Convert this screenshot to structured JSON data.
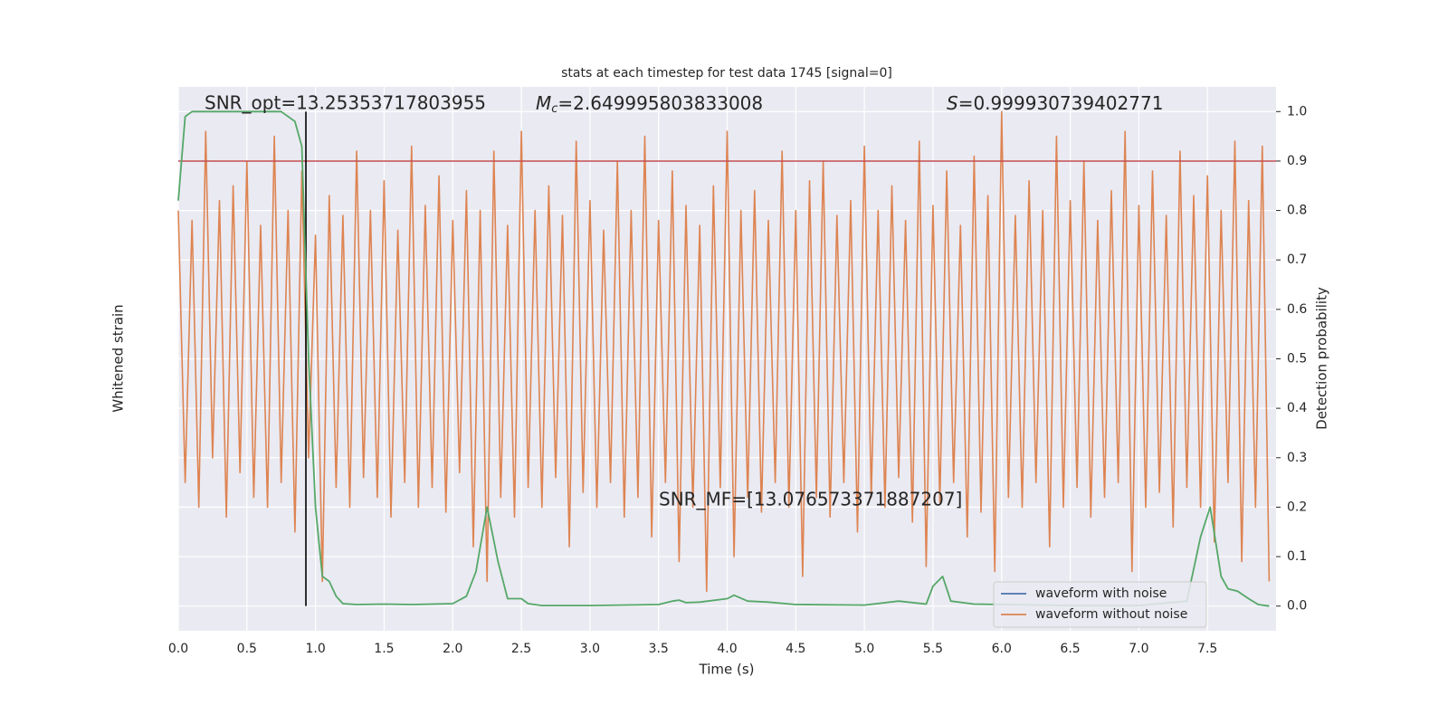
{
  "chart_data": {
    "type": "line",
    "title": "stats at each timestep for test data 1745 [signal=0]",
    "xlabel": "Time (s)",
    "ylabel": "Whitened strain",
    "y2label": "Detection probability",
    "xlim": [
      0,
      8
    ],
    "xticks": [
      {
        "value": 0,
        "label": "0.0"
      },
      0.5,
      {
        "value": 1,
        "label": "1.0"
      },
      1.5,
      {
        "value": 2,
        "label": "2.0"
      },
      2.5,
      {
        "value": 3,
        "label": "3.0"
      },
      3.5,
      {
        "value": 4,
        "label": "4.0"
      },
      4.5,
      {
        "value": 5,
        "label": "5.0"
      },
      5.5,
      {
        "value": 6,
        "label": "6.0"
      },
      6.5,
      {
        "value": 7,
        "label": "7.0"
      },
      7.5
    ],
    "ylim": [
      -0.05,
      1.05
    ],
    "y2lim": [
      -0.05,
      1.05
    ],
    "y2ticks": [
      {
        "value": 0,
        "label": "0.0"
      },
      0.1,
      0.2,
      0.3,
      0.4,
      0.5,
      0.6,
      0.7,
      0.8,
      0.9,
      {
        "value": 1,
        "label": "1.0"
      }
    ],
    "grid": true,
    "legend_position": "lower right",
    "legend": [
      {
        "name": "waveform with noise",
        "color": "#4c72b0"
      },
      {
        "name": "waveform without noise",
        "color": "#dd8452"
      }
    ],
    "strain": {
      "color": "#dd8452",
      "x": [
        0,
        0.05,
        0.1,
        0.15,
        0.2,
        0.25,
        0.3,
        0.35,
        0.4,
        0.45,
        0.5,
        0.55,
        0.6,
        0.65,
        0.7,
        0.75,
        0.8,
        0.85,
        0.9,
        0.95,
        1,
        1.05,
        1.1,
        1.15,
        1.2,
        1.25,
        1.3,
        1.35,
        1.4,
        1.45,
        1.5,
        1.55,
        1.6,
        1.65,
        1.7,
        1.75,
        1.8,
        1.85,
        1.9,
        1.95,
        2,
        2.05,
        2.1,
        2.15,
        2.2,
        2.25,
        2.3,
        2.35,
        2.4,
        2.45,
        2.5,
        2.55,
        2.6,
        2.65,
        2.7,
        2.75,
        2.8,
        2.85,
        2.9,
        2.95,
        3,
        3.05,
        3.1,
        3.15,
        3.2,
        3.25,
        3.3,
        3.35,
        3.4,
        3.45,
        3.5,
        3.55,
        3.6,
        3.65,
        3.7,
        3.75,
        3.8,
        3.85,
        3.9,
        3.95,
        4,
        4.05,
        4.1,
        4.15,
        4.2,
        4.25,
        4.3,
        4.35,
        4.4,
        4.45,
        4.5,
        4.55,
        4.6,
        4.65,
        4.7,
        4.75,
        4.8,
        4.85,
        4.9,
        4.95,
        5,
        5.05,
        5.1,
        5.15,
        5.2,
        5.25,
        5.3,
        5.35,
        5.4,
        5.45,
        5.5,
        5.55,
        5.6,
        5.65,
        5.7,
        5.75,
        5.8,
        5.85,
        5.9,
        5.95,
        6,
        6.05,
        6.1,
        6.15,
        6.2,
        6.25,
        6.3,
        6.35,
        6.4,
        6.45,
        6.5,
        6.55,
        6.6,
        6.65,
        6.7,
        6.75,
        6.8,
        6.85,
        6.9,
        6.95,
        7,
        7.05,
        7.1,
        7.15,
        7.2,
        7.25,
        7.3,
        7.35,
        7.4,
        7.45,
        7.5,
        7.55,
        7.6,
        7.65,
        7.7,
        7.75,
        7.8,
        7.85,
        7.9,
        7.95
      ],
      "values": [
        0.8,
        0.25,
        0.78,
        0.2,
        0.96,
        0.3,
        0.82,
        0.18,
        0.85,
        0.27,
        0.9,
        0.22,
        0.77,
        0.2,
        0.95,
        0.25,
        0.8,
        0.15,
        0.88,
        0.3,
        0.75,
        0.05,
        0.83,
        0.24,
        0.79,
        0.2,
        0.92,
        0.26,
        0.8,
        0.22,
        0.86,
        0.18,
        0.76,
        0.25,
        0.93,
        0.2,
        0.81,
        0.24,
        0.87,
        0.19,
        0.78,
        0.27,
        0.84,
        0.12,
        0.8,
        0.05,
        0.92,
        0.22,
        0.77,
        0.18,
        0.96,
        0.24,
        0.8,
        0.2,
        0.85,
        0.26,
        0.79,
        0.12,
        0.94,
        0.23,
        0.82,
        0.2,
        0.76,
        0.25,
        0.9,
        0.18,
        0.8,
        0.22,
        0.95,
        0.14,
        0.78,
        0.25,
        0.88,
        0.09,
        0.81,
        0.2,
        0.77,
        0.03,
        0.85,
        0.24,
        0.96,
        0.1,
        0.8,
        0.22,
        0.84,
        0.19,
        0.78,
        0.25,
        0.92,
        0.2,
        0.8,
        0.06,
        0.86,
        0.22,
        0.9,
        0.18,
        0.79,
        0.25,
        0.82,
        0.15,
        0.93,
        0.22,
        0.8,
        0.2,
        0.85,
        0.26,
        0.78,
        0.17,
        0.94,
        0.08,
        0.81,
        0.21,
        0.88,
        0.25,
        0.77,
        0.14,
        0.91,
        0.19,
        0.83,
        0.07,
        1.0,
        0.22,
        0.79,
        0.2,
        0.86,
        0.25,
        0.8,
        0.12,
        0.95,
        0.2,
        0.82,
        0.24,
        0.9,
        0.18,
        0.78,
        0.22,
        0.84,
        0.25,
        0.96,
        0.07,
        0.81,
        0.2,
        0.88,
        0.23,
        0.79,
        0.16,
        0.92,
        0.24,
        0.83,
        0.2,
        0.87,
        0.13,
        0.8,
        0.25,
        0.94,
        0.09,
        0.82,
        0.2,
        0.93,
        0.05
      ]
    },
    "probability": {
      "color": "#55a868",
      "axis": "y2",
      "x": [
        0,
        0.05,
        0.1,
        0.2,
        0.3,
        0.4,
        0.5,
        0.6,
        0.7,
        0.75,
        0.85,
        0.9,
        0.95,
        1.0,
        1.05,
        1.1,
        1.15,
        1.2,
        1.3,
        1.5,
        1.7,
        2.0,
        2.1,
        2.17,
        2.25,
        2.33,
        2.4,
        2.5,
        2.55,
        2.65,
        3.0,
        3.5,
        3.6,
        3.65,
        3.7,
        3.8,
        4.0,
        4.05,
        4.15,
        4.3,
        4.5,
        5.0,
        5.25,
        5.45,
        5.5,
        5.57,
        5.63,
        5.8,
        6.5,
        7.0,
        7.35,
        7.45,
        7.52,
        7.6,
        7.65,
        7.72,
        7.8,
        7.87,
        7.95
      ],
      "values": [
        0.82,
        0.99,
        1.0,
        1.0,
        1.0,
        1.0,
        1.0,
        1.0,
        1.0,
        1.0,
        0.98,
        0.93,
        0.5,
        0.2,
        0.06,
        0.05,
        0.02,
        0.005,
        0.003,
        0.004,
        0.003,
        0.005,
        0.02,
        0.07,
        0.2,
        0.09,
        0.015,
        0.015,
        0.005,
        0.001,
        0.001,
        0.003,
        0.01,
        0.012,
        0.007,
        0.008,
        0.015,
        0.022,
        0.01,
        0.008,
        0.003,
        0.002,
        0.01,
        0.004,
        0.04,
        0.06,
        0.01,
        0.004,
        0.001,
        0.001,
        0.01,
        0.14,
        0.2,
        0.06,
        0.035,
        0.03,
        0.015,
        0.003,
        0.0
      ]
    },
    "threshold": {
      "value": 0.9,
      "color": "#c44e52"
    },
    "marker_line": {
      "x": 0.93,
      "y": [
        0,
        1
      ],
      "color": "#000000"
    },
    "annotations": {
      "snr_opt": "SNR_opt=13.25353717803955",
      "mc": {
        "symbol": "M",
        "sub": "c",
        "text": "=2.649995803833008"
      },
      "s": {
        "symbol": "S",
        "text": "=0.999930739402771"
      },
      "snr_mf": "SNR_MF=[13.076573371887207]"
    }
  }
}
